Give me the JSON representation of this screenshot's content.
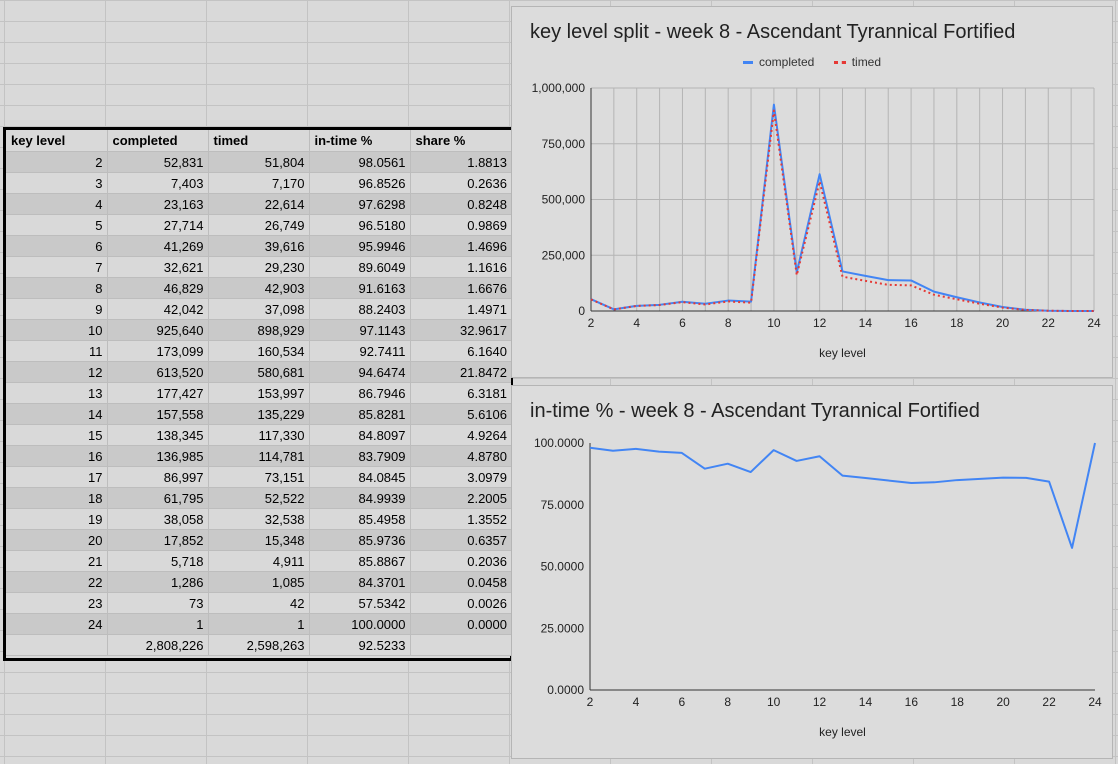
{
  "table": {
    "headers": [
      "key level",
      "completed",
      "timed",
      "in-time %",
      "share %"
    ],
    "rows": [
      [
        "2",
        "52,831",
        "51,804",
        "98.0561",
        "1.8813"
      ],
      [
        "3",
        "7,403",
        "7,170",
        "96.8526",
        "0.2636"
      ],
      [
        "4",
        "23,163",
        "22,614",
        "97.6298",
        "0.8248"
      ],
      [
        "5",
        "27,714",
        "26,749",
        "96.5180",
        "0.9869"
      ],
      [
        "6",
        "41,269",
        "39,616",
        "95.9946",
        "1.4696"
      ],
      [
        "7",
        "32,621",
        "29,230",
        "89.6049",
        "1.1616"
      ],
      [
        "8",
        "46,829",
        "42,903",
        "91.6163",
        "1.6676"
      ],
      [
        "9",
        "42,042",
        "37,098",
        "88.2403",
        "1.4971"
      ],
      [
        "10",
        "925,640",
        "898,929",
        "97.1143",
        "32.9617"
      ],
      [
        "11",
        "173,099",
        "160,534",
        "92.7411",
        "6.1640"
      ],
      [
        "12",
        "613,520",
        "580,681",
        "94.6474",
        "21.8472"
      ],
      [
        "13",
        "177,427",
        "153,997",
        "86.7946",
        "6.3181"
      ],
      [
        "14",
        "157,558",
        "135,229",
        "85.8281",
        "5.6106"
      ],
      [
        "15",
        "138,345",
        "117,330",
        "84.8097",
        "4.9264"
      ],
      [
        "16",
        "136,985",
        "114,781",
        "83.7909",
        "4.8780"
      ],
      [
        "17",
        "86,997",
        "73,151",
        "84.0845",
        "3.0979"
      ],
      [
        "18",
        "61,795",
        "52,522",
        "84.9939",
        "2.2005"
      ],
      [
        "19",
        "38,058",
        "32,538",
        "85.4958",
        "1.3552"
      ],
      [
        "20",
        "17,852",
        "15,348",
        "85.9736",
        "0.6357"
      ],
      [
        "21",
        "5,718",
        "4,911",
        "85.8867",
        "0.2036"
      ],
      [
        "22",
        "1,286",
        "1,085",
        "84.3701",
        "0.0458"
      ],
      [
        "23",
        "73",
        "42",
        "57.5342",
        "0.0026"
      ],
      [
        "24",
        "1",
        "1",
        "100.0000",
        "0.0000"
      ]
    ],
    "totals": [
      "",
      "2,808,226",
      "2,598,263",
      "92.5233",
      ""
    ]
  },
  "chart_data": [
    {
      "type": "line",
      "title": "key level split - week 8 - Ascendant Tyrannical Fortified",
      "xlabel": "key level",
      "ylabel": "",
      "x": [
        2,
        3,
        4,
        5,
        6,
        7,
        8,
        9,
        10,
        11,
        12,
        13,
        14,
        15,
        16,
        17,
        18,
        19,
        20,
        21,
        22,
        23,
        24
      ],
      "xticks": [
        2,
        4,
        6,
        8,
        10,
        12,
        14,
        16,
        18,
        20,
        22,
        24
      ],
      "yticks": [
        "0",
        "250,000",
        "500,000",
        "750,000",
        "1,000,000"
      ],
      "ylim": [
        0,
        1000000
      ],
      "legend_position": "top",
      "grid": true,
      "series": [
        {
          "name": "completed",
          "color": "#4285f4",
          "style": "solid",
          "values": [
            52831,
            7403,
            23163,
            27714,
            41269,
            32621,
            46829,
            42042,
            925640,
            173099,
            613520,
            177427,
            157558,
            138345,
            136985,
            86997,
            61795,
            38058,
            17852,
            5718,
            1286,
            73,
            1
          ]
        },
        {
          "name": "timed",
          "color": "#e53935",
          "style": "dotted",
          "values": [
            51804,
            7170,
            22614,
            26749,
            39616,
            29230,
            42903,
            37098,
            898929,
            160534,
            580681,
            153997,
            135229,
            117330,
            114781,
            73151,
            52522,
            32538,
            15348,
            4911,
            1085,
            42,
            1
          ]
        }
      ]
    },
    {
      "type": "line",
      "title": "in-time % - week 8 - Ascendant Tyrannical Fortified",
      "xlabel": "key level",
      "ylabel": "",
      "x": [
        2,
        3,
        4,
        5,
        6,
        7,
        8,
        9,
        10,
        11,
        12,
        13,
        14,
        15,
        16,
        17,
        18,
        19,
        20,
        21,
        22,
        23,
        24
      ],
      "xticks": [
        2,
        4,
        6,
        8,
        10,
        12,
        14,
        16,
        18,
        20,
        22,
        24
      ],
      "yticks": [
        "0.0000",
        "25.0000",
        "50.0000",
        "75.0000",
        "100.0000"
      ],
      "ylim": [
        0,
        100
      ],
      "grid": false,
      "series": [
        {
          "name": "",
          "color": "#4285f4",
          "style": "solid",
          "values": [
            98.0561,
            96.8526,
            97.6298,
            96.518,
            95.9946,
            89.6049,
            91.6163,
            88.2403,
            97.1143,
            92.7411,
            94.6474,
            86.7946,
            85.8281,
            84.8097,
            83.7909,
            84.0845,
            84.9939,
            85.4958,
            85.9736,
            85.8867,
            84.3701,
            57.5342,
            100.0
          ]
        }
      ]
    }
  ]
}
